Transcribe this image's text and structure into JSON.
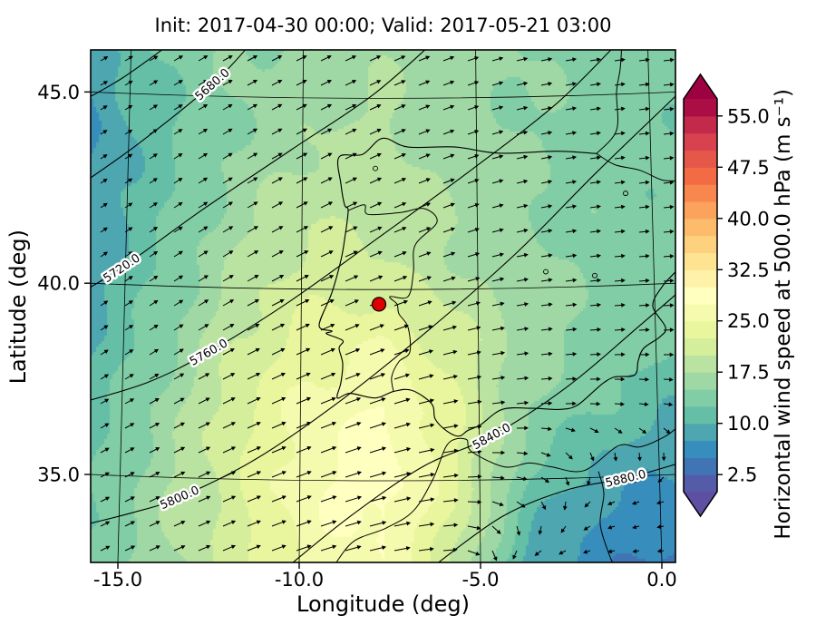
{
  "chart_data": {
    "type": "heatmap",
    "title": "Init: 2017-04-30 00:00; Valid: 2017-05-21 03:00",
    "xlabel": "Longitude (deg)",
    "ylabel": "Latitude (deg)",
    "xlim": [
      -15.75,
      0.375
    ],
    "ylim": [
      32.7,
      46.1
    ],
    "grid": true,
    "xticks": {
      "values": [
        -15.0,
        -10.0,
        -5.0,
        0.0
      ],
      "labels": [
        "-15.0",
        "-10.0",
        "-5.0",
        "0.0"
      ]
    },
    "yticks": {
      "values": [
        35.0,
        40.0,
        45.0
      ],
      "labels": [
        "35.0",
        "40.0",
        "45.0"
      ]
    },
    "colorbar": {
      "label": "Horizontal wind speed at 500.0 hPa (m s⁻¹)",
      "ticks": [
        2.5,
        10.0,
        17.5,
        25.0,
        32.5,
        40.0,
        47.5,
        55.0
      ],
      "vmin": 0.0,
      "vmax": 57.5,
      "band_step": 2.5,
      "extend": "both",
      "cmap": "Spectral_r",
      "cmap_stops": [
        [
          0.0,
          "#5e4fa2"
        ],
        [
          0.1,
          "#3288bd"
        ],
        [
          0.2,
          "#66c2a5"
        ],
        [
          0.3,
          "#abdda4"
        ],
        [
          0.4,
          "#e6f598"
        ],
        [
          0.5,
          "#ffffbf"
        ],
        [
          0.6,
          "#fee08b"
        ],
        [
          0.7,
          "#fdae61"
        ],
        [
          0.8,
          "#f46d43"
        ],
        [
          0.9,
          "#d53e4f"
        ],
        [
          1.0,
          "#9e0142"
        ]
      ]
    },
    "wind": {
      "lon": [
        -15.75,
        -13.73,
        -11.72,
        -9.7,
        -7.69,
        -5.67,
        -3.66,
        -1.64,
        0.38
      ],
      "lat": [
        46.1,
        44.2,
        42.3,
        40.4,
        38.5,
        36.6,
        34.6,
        32.7
      ],
      "speed": [
        [
          9,
          13,
          15,
          16,
          17,
          16,
          15,
          14,
          14
        ],
        [
          7,
          12,
          15,
          17,
          18,
          16,
          15,
          14,
          13
        ],
        [
          8,
          12,
          16,
          19,
          19,
          17,
          15,
          14,
          13
        ],
        [
          9,
          13,
          18,
          21,
          20,
          18,
          16,
          14,
          13
        ],
        [
          10,
          14,
          20,
          24,
          25,
          21,
          16,
          14,
          13
        ],
        [
          11,
          16,
          22,
          26,
          28,
          23,
          15,
          12,
          10
        ],
        [
          12,
          17,
          22,
          27,
          29,
          23,
          12,
          8,
          7
        ],
        [
          13,
          17,
          21,
          26,
          27,
          20,
          9,
          6,
          4
        ]
      ],
      "dir_deg": [
        [
          30,
          30,
          28,
          26,
          24,
          20,
          12,
          8,
          6
        ],
        [
          32,
          32,
          30,
          27,
          24,
          20,
          12,
          8,
          6
        ],
        [
          34,
          33,
          30,
          27,
          24,
          20,
          12,
          8,
          6
        ],
        [
          35,
          33,
          30,
          26,
          22,
          18,
          10,
          6,
          4
        ],
        [
          33,
          32,
          28,
          24,
          20,
          14,
          8,
          4,
          2
        ],
        [
          30,
          28,
          25,
          22,
          18,
          10,
          4,
          -4,
          -10
        ],
        [
          28,
          26,
          23,
          20,
          15,
          6,
          -20,
          -150,
          -165
        ],
        [
          26,
          24,
          22,
          18,
          12,
          2,
          -160,
          -170,
          -175
        ]
      ]
    },
    "geopotential_contours": [
      {
        "label": null,
        "points": [
          [
            -16.3,
            44.6
          ],
          [
            -14.9,
            45.35
          ],
          [
            -13.5,
            46.3
          ]
        ]
      },
      {
        "label": "5680.0",
        "label_pos": [
          -12.4,
          45.2
        ],
        "points": [
          [
            -16.3,
            42.4
          ],
          [
            -14.5,
            43.6
          ],
          [
            -12.4,
            45.2
          ],
          [
            -11.3,
            46.3
          ]
        ]
      },
      {
        "label": "5720.0",
        "label_pos": [
          -14.9,
          40.4
        ],
        "points": [
          [
            -16.3,
            39.6
          ],
          [
            -14.9,
            40.4
          ],
          [
            -12.7,
            41.9
          ],
          [
            -10.2,
            43.5
          ],
          [
            -8.0,
            44.9
          ],
          [
            -6.3,
            46.3
          ]
        ]
      },
      {
        "label": "5760.0",
        "label_pos": [
          -12.5,
          38.2
        ],
        "points": [
          [
            -16.3,
            36.8
          ],
          [
            -14.2,
            37.4
          ],
          [
            -12.5,
            38.2
          ],
          [
            -10.3,
            39.5
          ],
          [
            -7.8,
            41.2
          ],
          [
            -5.2,
            43.0
          ],
          [
            -2.9,
            44.7
          ],
          [
            -1.2,
            46.3
          ]
        ]
      },
      {
        "label": "5800.0",
        "label_pos": [
          -13.3,
          34.4
        ],
        "points": [
          [
            -16.3,
            33.6
          ],
          [
            -14.6,
            34.0
          ],
          [
            -13.3,
            34.4
          ],
          [
            -11.2,
            35.4
          ],
          [
            -8.9,
            36.9
          ],
          [
            -6.4,
            38.8
          ],
          [
            -4.0,
            40.8
          ],
          [
            -1.8,
            42.9
          ],
          [
            0.5,
            45.0
          ]
        ]
      },
      {
        "label": "5840.0",
        "label_pos": [
          -4.7,
          36.0
        ],
        "points": [
          [
            -10.3,
            32.6
          ],
          [
            -8.6,
            33.9
          ],
          [
            -6.6,
            35.2
          ],
          [
            -4.7,
            36.0
          ],
          [
            -2.6,
            37.3
          ],
          [
            -0.6,
            38.9
          ],
          [
            0.5,
            39.8
          ]
        ]
      },
      {
        "label": "5880.0",
        "label_pos": [
          -1.0,
          34.9
        ],
        "points": [
          [
            -6.3,
            32.6
          ],
          [
            -4.4,
            33.9
          ],
          [
            -2.6,
            34.6
          ],
          [
            -1.0,
            34.9
          ],
          [
            0.5,
            35.3
          ]
        ]
      }
    ],
    "marker": {
      "lon": -7.8,
      "lat": 39.45,
      "color": "#e00000",
      "edge_color": "#000000"
    },
    "coastlines": {
      "iberia": [
        [
          -1.8,
          43.39
        ],
        [
          -2.9,
          43.45
        ],
        [
          -4.5,
          43.4
        ],
        [
          -5.7,
          43.56
        ],
        [
          -7.0,
          43.56
        ],
        [
          -7.7,
          43.79
        ],
        [
          -8.25,
          43.37
        ],
        [
          -8.9,
          43.3
        ],
        [
          -8.85,
          42.6
        ],
        [
          -8.75,
          42.05
        ],
        [
          -8.65,
          41.9
        ],
        [
          -8.74,
          41.2
        ],
        [
          -8.85,
          40.6
        ],
        [
          -9.1,
          39.75
        ],
        [
          -9.45,
          38.9
        ],
        [
          -9.1,
          38.75
        ],
        [
          -9.25,
          38.68
        ],
        [
          -8.8,
          38.5
        ],
        [
          -8.9,
          38.3
        ],
        [
          -8.8,
          37.9
        ],
        [
          -8.85,
          37.4
        ],
        [
          -8.95,
          37.0
        ],
        [
          -8.6,
          37.12
        ],
        [
          -7.9,
          37.0
        ],
        [
          -7.4,
          37.17
        ],
        [
          -6.9,
          37.2
        ],
        [
          -6.35,
          36.85
        ],
        [
          -6.25,
          36.45
        ],
        [
          -5.95,
          36.15
        ],
        [
          -5.6,
          36.0
        ],
        [
          -5.35,
          36.15
        ],
        [
          -5.0,
          36.3
        ],
        [
          -4.4,
          36.7
        ],
        [
          -3.6,
          36.73
        ],
        [
          -2.8,
          36.7
        ],
        [
          -2.35,
          36.8
        ],
        [
          -1.85,
          37.2
        ],
        [
          -1.6,
          37.4
        ],
        [
          -1.3,
          37.55
        ],
        [
          -0.75,
          37.6
        ],
        [
          -0.65,
          37.98
        ],
        [
          -0.5,
          38.3
        ],
        [
          -0.05,
          38.6
        ],
        [
          0.1,
          38.85
        ],
        [
          -0.25,
          39.4
        ],
        [
          0.0,
          39.9
        ],
        [
          0.38,
          40.3
        ]
      ],
      "france_coast": [
        [
          -1.8,
          43.39
        ],
        [
          -1.25,
          44.0
        ],
        [
          -1.25,
          45.0
        ],
        [
          -1.15,
          45.6
        ],
        [
          -1.1,
          46.3
        ]
      ],
      "france_border": [
        [
          -1.8,
          43.39
        ],
        [
          -1.3,
          43.1
        ],
        [
          -0.6,
          42.95
        ],
        [
          0.0,
          42.7
        ],
        [
          0.5,
          42.68
        ]
      ],
      "pt_es_border": [
        [
          -8.65,
          41.9
        ],
        [
          -8.2,
          42.05
        ],
        [
          -8.1,
          41.8
        ],
        [
          -7.2,
          41.85
        ],
        [
          -6.55,
          41.95
        ],
        [
          -6.2,
          41.6
        ],
        [
          -6.8,
          41.0
        ],
        [
          -6.85,
          40.3
        ],
        [
          -7.0,
          39.65
        ],
        [
          -7.5,
          39.65
        ],
        [
          -7.3,
          39.45
        ],
        [
          -7.25,
          39.2
        ],
        [
          -7.0,
          38.85
        ],
        [
          -6.95,
          38.2
        ],
        [
          -7.25,
          37.95
        ],
        [
          -7.45,
          37.55
        ],
        [
          -7.4,
          37.17
        ]
      ],
      "africa": [
        [
          -9.05,
          32.6
        ],
        [
          -8.5,
          33.25
        ],
        [
          -7.6,
          33.6
        ],
        [
          -6.85,
          34.05
        ],
        [
          -6.3,
          34.9
        ],
        [
          -5.9,
          35.8
        ],
        [
          -5.4,
          35.92
        ],
        [
          -5.25,
          35.6
        ],
        [
          -4.35,
          35.2
        ],
        [
          -3.65,
          35.3
        ],
        [
          -3.05,
          35.2
        ],
        [
          -2.15,
          35.1
        ],
        [
          -1.2,
          35.75
        ],
        [
          -0.6,
          35.72
        ],
        [
          0.1,
          36.0
        ],
        [
          0.5,
          36.3
        ]
      ],
      "ma_dz_border": [
        [
          -1.75,
          35.08
        ],
        [
          -1.6,
          34.5
        ],
        [
          -1.7,
          33.7
        ],
        [
          -1.45,
          32.9
        ],
        [
          -1.3,
          32.6
        ]
      ]
    },
    "small_water_bodies": [
      [
        -3.2,
        40.3
      ],
      [
        -1.85,
        40.2
      ],
      [
        -1.0,
        42.35
      ],
      [
        -7.9,
        43.0
      ]
    ]
  }
}
